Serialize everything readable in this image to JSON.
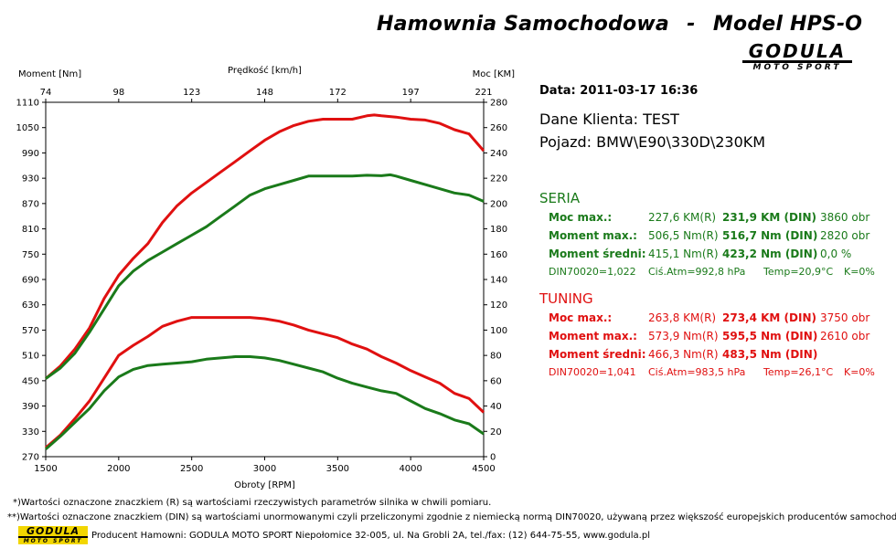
{
  "header": {
    "title_left": "Hamownia Samochodowa",
    "title_sep": "-",
    "title_right": "Model HPS-O",
    "logo_main": "GODULA",
    "logo_sub": "MOTO SPORT"
  },
  "info": {
    "date": "Data: 2011-03-17  16:36",
    "client": "Dane Klienta: TEST",
    "vehicle": "Pojazd: BMW\\E90\\330D\\230KM"
  },
  "seria": {
    "title": "SERIA",
    "color": "#1a7a1a",
    "rows": [
      {
        "label": "Moc max.:",
        "r": "227,6 KM(R)",
        "din": "231,9 KM (DIN)",
        "extra": "3860 obr"
      },
      {
        "label": "Moment max.:",
        "r": "506,5 Nm(R)",
        "din": "516,7 Nm (DIN)",
        "extra": "2820 obr"
      },
      {
        "label": "Moment średni:",
        "r": "415,1 Nm(R)",
        "din": "423,2 Nm (DIN)",
        "extra": "0,0 %"
      }
    ],
    "din_line": {
      "din": "DIN70020=1,022",
      "atm": "Ciś.Atm=992,8 hPa",
      "temp": "Temp=20,9°C",
      "k": "K=0%"
    }
  },
  "tuning": {
    "title": "TUNING",
    "color": "#e01010",
    "rows": [
      {
        "label": "Moc max.:",
        "r": "263,8 KM(R)",
        "din": "273,4 KM (DIN)",
        "extra": "3750 obr"
      },
      {
        "label": "Moment max.:",
        "r": "573,9 Nm(R)",
        "din": "595,5 Nm (DIN)",
        "extra": "2610 obr"
      },
      {
        "label": "Moment średni:",
        "r": "466,3 Nm(R)",
        "din": "483,5 Nm (DIN)",
        "extra": ""
      }
    ],
    "din_line": {
      "din": "DIN70020=1,041",
      "atm": "Ciś.Atm=983,5 hPa",
      "temp": "Temp=26,1°C",
      "k": "K=0%"
    }
  },
  "footer": {
    "note1": "*)Wartości oznaczone znaczkiem (R) są wartościami rzeczywistych parametrów silnika w chwili pomiaru.",
    "note2": "**)Wartości oznaczone znaczkiem (DIN) są wartościami unormowanymi czyli przeliczonymi zgodnie z niemiecką normą DIN70020, używaną przez większość europejskich producentów samochodów.",
    "producer": "Producent Hamowni: GODULA MOTO SPORT Niepołomice 32-005, ul. Na Grobli 2A, tel./fax: (12) 644-75-55, www.godula.pl",
    "logo_main": "GODULA",
    "logo_sub": "MOTO SPORT"
  },
  "chart_data": {
    "type": "line",
    "xlabel": "Obroty [RPM]",
    "top_xlabel": "Prędkość [km/h]",
    "ylabel_left": "Moment [Nm]",
    "ylabel_right": "Moc [KM]",
    "xlim": [
      1500,
      4500
    ],
    "ylim_left": [
      270,
      1110
    ],
    "ylim_right": [
      0,
      280
    ],
    "x_ticks": [
      "1500",
      "2000",
      "2500",
      "3000",
      "3500",
      "4000",
      "4500"
    ],
    "top_ticks": [
      "74",
      "98",
      "123",
      "148",
      "172",
      "197",
      "221"
    ],
    "left_ticks": [
      "270",
      "330",
      "390",
      "450",
      "510",
      "570",
      "630",
      "690",
      "750",
      "810",
      "870",
      "930",
      "990",
      "1050",
      "1110"
    ],
    "right_ticks": [
      "0",
      "20",
      "40",
      "60",
      "80",
      "100",
      "120",
      "140",
      "160",
      "180",
      "200",
      "220",
      "240",
      "260",
      "280"
    ],
    "grid": false,
    "series": [
      {
        "color": "#e01010",
        "axis": "left",
        "x": [
          1500,
          1600,
          1700,
          1800,
          1900,
          2000,
          2100,
          2200,
          2300,
          2400,
          2500,
          2600,
          2700,
          2800,
          2900,
          3000,
          3100,
          3200,
          3300,
          3400,
          3500,
          3600,
          3700,
          3750,
          3800,
          3900,
          4000,
          4100,
          4200,
          4300,
          4400,
          4500
        ],
        "y": [
          455,
          485,
          525,
          575,
          645,
          700,
          740,
          775,
          825,
          865,
          895,
          920,
          945,
          970,
          995,
          1020,
          1040,
          1055,
          1065,
          1070,
          1070,
          1070,
          1078,
          1080,
          1078,
          1075,
          1070,
          1068,
          1060,
          1045,
          1035,
          995
        ]
      },
      {
        "color": "#1a7a1a",
        "axis": "left",
        "x": [
          1500,
          1600,
          1700,
          1800,
          1900,
          2000,
          2100,
          2200,
          2300,
          2400,
          2500,
          2600,
          2700,
          2800,
          2900,
          3000,
          3100,
          3200,
          3300,
          3400,
          3500,
          3600,
          3700,
          3800,
          3860,
          3900,
          4000,
          4100,
          4200,
          4300,
          4400,
          4500
        ],
        "y": [
          455,
          480,
          515,
          565,
          620,
          675,
          710,
          735,
          755,
          775,
          795,
          815,
          840,
          865,
          890,
          905,
          915,
          925,
          935,
          935,
          935,
          935,
          937,
          936,
          938,
          935,
          925,
          915,
          905,
          895,
          890,
          875
        ]
      },
      {
        "color": "#e01010",
        "axis": "right",
        "x": [
          1500,
          1600,
          1700,
          1800,
          1900,
          2000,
          2100,
          2200,
          2300,
          2400,
          2500,
          2600,
          2700,
          2800,
          2900,
          3000,
          3100,
          3200,
          3300,
          3400,
          3500,
          3600,
          3700,
          3800,
          3900,
          4000,
          4100,
          4200,
          4300,
          4400,
          4500
        ],
        "y": [
          7,
          17,
          30,
          44,
          62,
          80,
          88,
          95,
          103,
          107,
          110,
          110,
          110,
          110,
          110,
          109,
          107,
          104,
          100,
          97,
          94,
          89,
          85,
          79,
          74,
          68,
          63,
          58,
          50,
          46,
          35
        ]
      },
      {
        "color": "#1a7a1a",
        "axis": "right",
        "x": [
          1500,
          1600,
          1700,
          1800,
          1900,
          2000,
          2100,
          2200,
          2300,
          2400,
          2500,
          2600,
          2700,
          2800,
          2900,
          3000,
          3100,
          3200,
          3300,
          3400,
          3500,
          3600,
          3700,
          3800,
          3900,
          4000,
          4100,
          4200,
          4300,
          4400,
          4500
        ],
        "y": [
          6,
          16,
          27,
          38,
          52,
          63,
          69,
          72,
          73,
          74,
          75,
          77,
          78,
          79,
          79,
          78,
          76,
          73,
          70,
          67,
          62,
          58,
          55,
          52,
          50,
          44,
          38,
          34,
          29,
          26,
          18
        ]
      }
    ]
  }
}
